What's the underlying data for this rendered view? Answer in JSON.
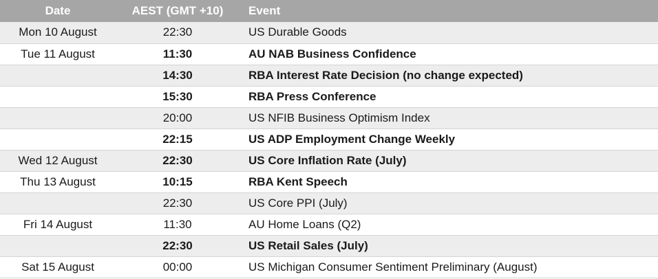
{
  "header": {
    "date": "Date",
    "time": "AEST (GMT +10)",
    "event": "Event"
  },
  "rows": [
    {
      "date": "Mon 10 August",
      "time": "22:30",
      "event": "US Durable Goods",
      "bold": false
    },
    {
      "date": "Tue 11 August",
      "time": "11:30",
      "event": "AU NAB Business Confidence",
      "bold": true
    },
    {
      "date": "",
      "time": "14:30",
      "event": "RBA Interest Rate Decision (no change expected)",
      "bold": true
    },
    {
      "date": "",
      "time": "15:30",
      "event": "RBA Press Conference",
      "bold": true
    },
    {
      "date": "",
      "time": "20:00",
      "event": "US NFIB Business Optimism Index",
      "bold": false
    },
    {
      "date": "",
      "time": "22:15",
      "event": "US ADP Employment Change Weekly",
      "bold": true
    },
    {
      "date": "Wed 12 August",
      "time": "22:30",
      "event": "US Core Inflation Rate (July)",
      "bold": true
    },
    {
      "date": "Thu 13 August",
      "time": "10:15",
      "event": "RBA Kent Speech",
      "bold": true
    },
    {
      "date": "",
      "time": "22:30",
      "event": "US Core PPI (July)",
      "bold": false
    },
    {
      "date": "Fri 14 August",
      "time": "11:30",
      "event": "AU Home Loans (Q2)",
      "bold": false
    },
    {
      "date": "",
      "time": "22:30",
      "event": "US Retail Sales (July)",
      "bold": true
    },
    {
      "date": "Sat 15 August",
      "time": "00:00",
      "event": "US Michigan Consumer Sentiment Preliminary (August)",
      "bold": false
    }
  ],
  "colors": {
    "header_bg": "#a6a6a6",
    "header_text": "#ffffff",
    "row_shade": "#ededed",
    "row_plain": "#ffffff"
  }
}
